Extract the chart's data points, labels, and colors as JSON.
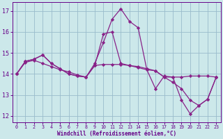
{
  "bg_color": "#cce8ea",
  "line_color": "#882288",
  "grid_color": "#99bbcc",
  "xlabel": "Windchill (Refroidissement éolien,°C)",
  "xlabel_color": "#660088",
  "tick_color": "#660088",
  "ylim": [
    11.7,
    17.4
  ],
  "xlim": [
    -0.5,
    23.5
  ],
  "yticks": [
    12,
    13,
    14,
    15,
    16,
    17
  ],
  "xticks": [
    0,
    1,
    2,
    3,
    4,
    5,
    6,
    7,
    8,
    9,
    10,
    11,
    12,
    13,
    14,
    15,
    16,
    17,
    18,
    19,
    20,
    21,
    22,
    23
  ],
  "series1": [
    14.0,
    14.6,
    14.7,
    14.9,
    14.5,
    14.25,
    14.0,
    13.9,
    13.85,
    14.5,
    15.5,
    16.6,
    17.1,
    16.5,
    16.2,
    14.2,
    13.3,
    13.9,
    13.85,
    12.75,
    12.1,
    12.5,
    12.8,
    13.85
  ],
  "series2": [
    14.0,
    14.6,
    14.7,
    14.9,
    14.5,
    14.25,
    14.0,
    13.9,
    13.85,
    14.4,
    15.9,
    16.0,
    14.5,
    14.4,
    14.3,
    14.2,
    14.15,
    13.85,
    13.6,
    13.3,
    12.75,
    12.5,
    12.8,
    13.85
  ],
  "series3": [
    14.0,
    14.55,
    14.65,
    14.5,
    14.35,
    14.2,
    14.1,
    13.95,
    13.85,
    14.4,
    14.45,
    14.45,
    14.45,
    14.4,
    14.35,
    14.25,
    14.15,
    13.85,
    13.85,
    13.85,
    13.9,
    13.9,
    13.9,
    13.85
  ]
}
